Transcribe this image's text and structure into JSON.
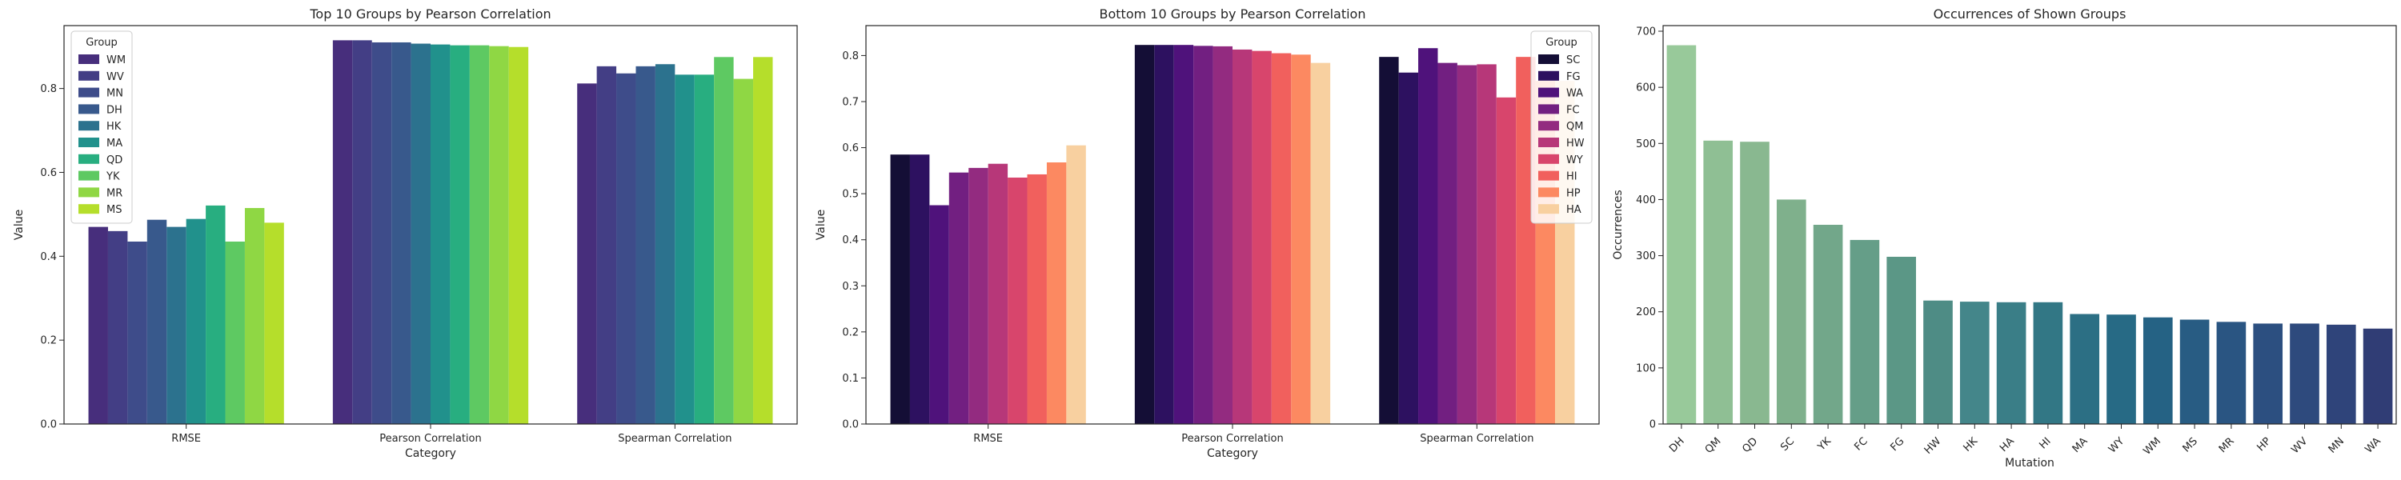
{
  "chart_data": [
    {
      "type": "bar",
      "title": "Top 10 Groups by Pearson Correlation",
      "xlabel": "Category",
      "ylabel": "Value",
      "categories": [
        "RMSE",
        "Pearson Correlation",
        "Spearman Correlation"
      ],
      "ylim": [
        0,
        0.95
      ],
      "yticks": [
        0.0,
        0.2,
        0.4,
        0.6,
        0.8
      ],
      "legend": {
        "title": "Group",
        "position": "top-left"
      },
      "series": [
        {
          "name": "WM",
          "color": "#472e7c",
          "values": [
            0.47,
            0.915,
            0.812
          ]
        },
        {
          "name": "WV",
          "color": "#433e85",
          "values": [
            0.46,
            0.915,
            0.853
          ]
        },
        {
          "name": "MN",
          "color": "#3e4c8a",
          "values": [
            0.435,
            0.91,
            0.836
          ]
        },
        {
          "name": "DH",
          "color": "#38598c",
          "values": [
            0.487,
            0.91,
            0.853
          ]
        },
        {
          "name": "HK",
          "color": "#2c728e",
          "values": [
            0.47,
            0.907,
            0.858
          ]
        },
        {
          "name": "MA",
          "color": "#21918c",
          "values": [
            0.489,
            0.905,
            0.833
          ]
        },
        {
          "name": "QD",
          "color": "#28ae80",
          "values": [
            0.521,
            0.903,
            0.833
          ]
        },
        {
          "name": "YK",
          "color": "#5ec962",
          "values": [
            0.435,
            0.903,
            0.875
          ]
        },
        {
          "name": "MR",
          "color": "#8fd744",
          "values": [
            0.515,
            0.901,
            0.823
          ]
        },
        {
          "name": "MS",
          "color": "#b5de2b",
          "values": [
            0.48,
            0.899,
            0.875
          ]
        }
      ]
    },
    {
      "type": "bar",
      "title": "Bottom 10 Groups by Pearson Correlation",
      "xlabel": "Category",
      "ylabel": "Value",
      "categories": [
        "RMSE",
        "Pearson Correlation",
        "Spearman Correlation"
      ],
      "ylim": [
        0,
        0.865
      ],
      "yticks": [
        0.0,
        0.1,
        0.2,
        0.3,
        0.4,
        0.5,
        0.6,
        0.7,
        0.8
      ],
      "legend": {
        "title": "Group",
        "position": "top-right"
      },
      "series": [
        {
          "name": "SC",
          "color": "#140e36",
          "values": [
            0.585,
            0.823,
            0.797
          ]
        },
        {
          "name": "FG",
          "color": "#2d1160",
          "values": [
            0.585,
            0.823,
            0.763
          ]
        },
        {
          "name": "WA",
          "color": "#4f127b",
          "values": [
            0.475,
            0.823,
            0.816
          ]
        },
        {
          "name": "FC",
          "color": "#721f81",
          "values": [
            0.546,
            0.821,
            0.784
          ]
        },
        {
          "name": "QM",
          "color": "#932b80",
          "values": [
            0.556,
            0.82,
            0.779
          ]
        },
        {
          "name": "HW",
          "color": "#b73779",
          "values": [
            0.565,
            0.813,
            0.781
          ]
        },
        {
          "name": "WY",
          "color": "#d8456c",
          "values": [
            0.535,
            0.81,
            0.709
          ]
        },
        {
          "name": "HI",
          "color": "#f1605d",
          "values": [
            0.542,
            0.805,
            0.797
          ]
        },
        {
          "name": "HP",
          "color": "#fc8961",
          "values": [
            0.568,
            0.802,
            0.745
          ]
        },
        {
          "name": "HA",
          "color": "#f8d0a0",
          "values": [
            0.605,
            0.784,
            0.745
          ]
        }
      ]
    },
    {
      "type": "bar",
      "title": "Occurrences of Shown Groups",
      "xlabel": "Mutation",
      "ylabel": "Occurrences",
      "categories": [
        "DH",
        "QM",
        "QD",
        "SC",
        "YK",
        "FC",
        "FG",
        "HW",
        "HK",
        "HA",
        "HI",
        "MA",
        "WY",
        "WM",
        "MS",
        "MR",
        "HP",
        "WV",
        "MN",
        "WA"
      ],
      "values": [
        675,
        505,
        503,
        400,
        355,
        328,
        298,
        220,
        218,
        217,
        217,
        196,
        195,
        190,
        186,
        182,
        179,
        179,
        177,
        170
      ],
      "colors": [
        "#98c99a",
        "#8fbf94",
        "#89b890",
        "#7fb08c",
        "#72a78a",
        "#659e88",
        "#5b9786",
        "#4e8c85",
        "#44868a",
        "#3a7e87",
        "#327785",
        "#2c6f84",
        "#276a85",
        "#256284",
        "#285c83",
        "#2a5582",
        "#2c4f80",
        "#2e4a7d",
        "#2f447a",
        "#303d75"
      ],
      "ylim": [
        0,
        710
      ],
      "yticks": [
        0,
        100,
        200,
        300,
        400,
        500,
        600,
        700
      ]
    }
  ]
}
